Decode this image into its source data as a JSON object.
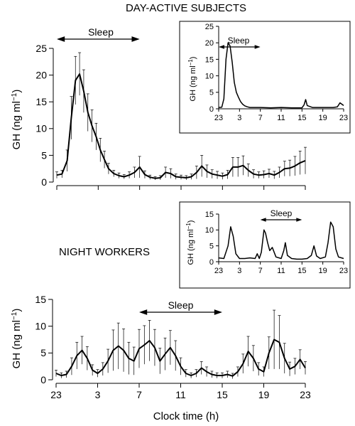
{
  "chart_data": [
    {
      "id": "day_main",
      "type": "line",
      "title": "DAY-ACTIVE SUBJECTS",
      "ylabel": "GH (ng ml",
      "ylabel_sup": "−1",
      "ylabel_close": ")",
      "xlim": [
        23,
        47
      ],
      "ylim": [
        0,
        25
      ],
      "yticks": [
        0,
        5,
        10,
        15,
        20,
        25
      ],
      "xticks": [
        23,
        27,
        31,
        35,
        39,
        43,
        47
      ],
      "xtick_labels": [],
      "sleep": {
        "label": "Sleep",
        "from": 23,
        "to": 31
      },
      "series": [
        {
          "x": [
            23.0,
            23.5,
            24.0,
            24.4,
            24.8,
            25.2,
            25.6,
            26.0,
            26.4,
            26.8,
            27.2,
            27.6,
            28.0,
            28.5,
            29.0,
            29.5,
            30.0,
            30.5,
            31.0,
            31.5,
            32.0,
            32.5,
            33.0,
            33.5,
            34.0,
            34.5,
            35.0,
            35.5,
            36.0,
            36.5,
            37.0,
            37.5,
            38.0,
            38.5,
            39.0,
            39.5,
            40.0,
            40.5,
            41.0,
            41.5,
            42.0,
            42.5,
            43.0,
            43.5,
            44.0,
            44.5,
            45.0,
            45.5,
            46.0,
            46.5,
            47.0
          ],
          "y": [
            1.3,
            1.5,
            4.0,
            12.0,
            19.0,
            20.2,
            17.0,
            13.0,
            10.5,
            8.5,
            6.0,
            4.2,
            2.5,
            1.6,
            1.2,
            1.0,
            1.3,
            1.8,
            2.8,
            1.4,
            0.9,
            0.7,
            0.8,
            1.8,
            1.6,
            1.0,
            0.9,
            0.8,
            1.0,
            1.8,
            3.0,
            2.0,
            1.5,
            1.3,
            1.1,
            1.4,
            2.8,
            2.8,
            3.1,
            2.2,
            1.5,
            1.3,
            1.4,
            1.6,
            1.3,
            1.8,
            2.5,
            2.6,
            3.0,
            3.6,
            4.0
          ]
        }
      ],
      "errors": [
        0.6,
        0.7,
        2.0,
        4.0,
        4.5,
        4.0,
        4.0,
        3.5,
        3.0,
        2.5,
        2.2,
        1.6,
        1.0,
        0.6,
        0.5,
        0.4,
        0.6,
        1.0,
        2.0,
        0.7,
        0.4,
        0.3,
        0.4,
        1.0,
        0.9,
        0.5,
        0.4,
        0.4,
        0.5,
        1.2,
        2.0,
        1.2,
        0.8,
        0.7,
        0.6,
        0.8,
        1.8,
        1.8,
        1.8,
        1.2,
        0.8,
        0.6,
        0.7,
        0.8,
        0.7,
        1.0,
        1.4,
        1.5,
        1.8,
        2.2,
        2.5
      ]
    },
    {
      "id": "day_inset",
      "type": "line",
      "ylabel": "GH (ng ml",
      "ylabel_sup": "−1",
      "ylabel_close": ")",
      "xlim": [
        23,
        47
      ],
      "ylim": [
        0,
        25
      ],
      "yticks": [
        0,
        5,
        10,
        15,
        20,
        25
      ],
      "xticks": [
        23,
        27,
        31,
        35,
        39,
        43,
        47
      ],
      "xtick_labels": [
        "23",
        "3",
        "7",
        "11",
        "15",
        "19",
        "23"
      ],
      "sleep": {
        "label": "Sleep",
        "from": 23,
        "to": 31
      },
      "series": [
        {
          "x": [
            23.0,
            23.6,
            24.0,
            24.4,
            24.8,
            25.2,
            25.6,
            26.0,
            26.4,
            26.8,
            27.2,
            27.6,
            28.0,
            28.5,
            29.0,
            30.0,
            31.0,
            33.0,
            35.0,
            37.0,
            39.0,
            39.4,
            39.7,
            40.0,
            41.0,
            43.0,
            45.0,
            45.8,
            46.3,
            47.0
          ],
          "y": [
            0.4,
            0.5,
            3.0,
            15.0,
            20.0,
            19.0,
            14.0,
            8.0,
            5.0,
            3.5,
            2.2,
            1.4,
            0.9,
            0.6,
            0.4,
            0.4,
            0.4,
            0.3,
            0.4,
            0.3,
            0.3,
            1.2,
            2.8,
            1.0,
            0.4,
            0.4,
            0.4,
            0.6,
            1.8,
            1.0
          ]
        }
      ]
    },
    {
      "id": "night_inset",
      "type": "line",
      "ylabel": "GH (ng ml",
      "ylabel_sup": "−1",
      "ylabel_close": ")",
      "xlim": [
        23,
        47
      ],
      "ylim": [
        0,
        15
      ],
      "yticks": [
        0,
        5,
        10,
        15
      ],
      "xticks": [
        23,
        27,
        31,
        35,
        39,
        43,
        47
      ],
      "xtick_labels": [
        "23",
        "3",
        "7",
        "11",
        "15",
        "19",
        "23"
      ],
      "sleep": {
        "label": "Sleep",
        "from": 31,
        "to": 39
      },
      "series": [
        {
          "x": [
            23.0,
            24.0,
            24.8,
            25.3,
            25.8,
            26.3,
            27.0,
            28.0,
            29.0,
            30.0,
            30.4,
            30.8,
            31.2,
            31.7,
            32.0,
            32.4,
            32.8,
            33.3,
            34.0,
            35.0,
            35.5,
            35.8,
            36.2,
            37.0,
            38.0,
            39.0,
            40.0,
            40.8,
            41.3,
            41.8,
            42.5,
            43.5,
            44.0,
            44.5,
            45.0,
            45.5,
            46.0,
            47.0
          ],
          "y": [
            1.2,
            1.0,
            5.0,
            11.0,
            8.0,
            2.5,
            1.0,
            1.0,
            1.2,
            1.0,
            2.5,
            1.0,
            3.0,
            10.0,
            9.0,
            6.0,
            3.5,
            4.5,
            1.5,
            1.0,
            3.5,
            6.0,
            2.0,
            1.0,
            0.8,
            0.8,
            1.0,
            2.0,
            5.0,
            1.8,
            1.0,
            1.5,
            6.0,
            12.5,
            11.0,
            4.0,
            1.5,
            1.0
          ]
        }
      ]
    },
    {
      "id": "night_main",
      "type": "line",
      "ylabel": "GH (ng ml",
      "ylabel_sup": "−1",
      "ylabel_close": ")",
      "xlabel": "Clock time (h)",
      "group_label": "NIGHT WORKERS",
      "xlim": [
        23,
        47
      ],
      "ylim": [
        0,
        15
      ],
      "yticks": [
        0,
        5,
        10,
        15
      ],
      "xticks": [
        23,
        27,
        31,
        35,
        39,
        43,
        47
      ],
      "xtick_labels": [
        "23",
        "3",
        "7",
        "11",
        "15",
        "19",
        "23"
      ],
      "sleep": {
        "label": "Sleep",
        "from": 31,
        "to": 39
      },
      "series": [
        {
          "x": [
            23.0,
            23.5,
            24.0,
            24.5,
            25.0,
            25.5,
            26.0,
            26.5,
            27.0,
            27.5,
            28.0,
            28.5,
            29.0,
            29.5,
            30.0,
            30.5,
            31.0,
            31.5,
            32.0,
            32.5,
            33.0,
            33.5,
            34.0,
            34.5,
            35.0,
            35.5,
            36.0,
            36.5,
            37.0,
            37.5,
            38.0,
            38.5,
            39.0,
            39.5,
            40.0,
            40.5,
            41.0,
            41.5,
            42.0,
            42.5,
            43.0,
            43.5,
            44.0,
            44.5,
            45.0,
            45.5,
            46.0,
            46.5,
            47.0
          ],
          "y": [
            1.2,
            0.8,
            1.0,
            2.5,
            4.5,
            5.5,
            4.0,
            1.8,
            1.2,
            2.0,
            3.5,
            5.5,
            6.3,
            5.5,
            4.0,
            3.5,
            5.8,
            6.5,
            7.3,
            6.0,
            3.5,
            4.8,
            6.0,
            4.5,
            2.5,
            1.2,
            0.8,
            1.2,
            2.2,
            1.5,
            1.0,
            0.8,
            0.8,
            1.0,
            0.7,
            1.5,
            3.0,
            5.3,
            4.0,
            2.0,
            1.5,
            5.0,
            7.5,
            7.0,
            4.0,
            2.0,
            2.5,
            3.8,
            2.2
          ]
        }
      ],
      "errors": [
        0.6,
        0.5,
        0.6,
        1.6,
        2.5,
        2.6,
        2.2,
        1.0,
        0.7,
        1.2,
        2.2,
        3.8,
        4.3,
        4.0,
        3.0,
        2.6,
        3.6,
        3.6,
        3.8,
        3.4,
        2.4,
        3.0,
        3.2,
        2.8,
        1.6,
        0.7,
        0.5,
        0.7,
        1.2,
        0.9,
        0.6,
        0.5,
        0.5,
        0.6,
        0.5,
        0.9,
        1.8,
        2.8,
        2.4,
        1.2,
        0.9,
        3.0,
        5.5,
        5.0,
        2.8,
        1.3,
        1.5,
        1.8,
        1.2
      ]
    }
  ]
}
